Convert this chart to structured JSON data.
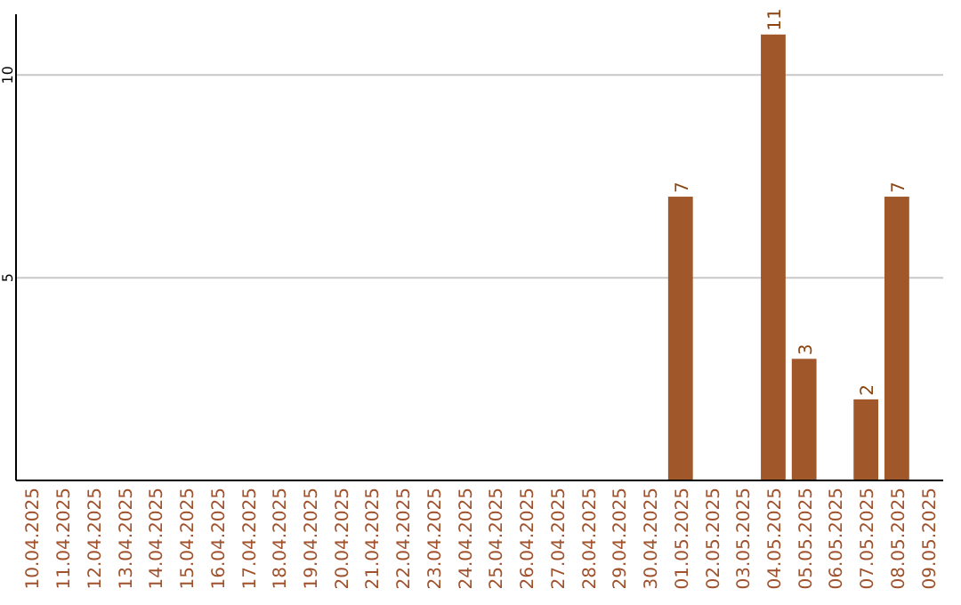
{
  "chart_data": {
    "type": "bar",
    "categories": [
      "10.04.2025",
      "11.04.2025",
      "12.04.2025",
      "13.04.2025",
      "14.04.2025",
      "15.04.2025",
      "16.04.2025",
      "17.04.2025",
      "18.04.2025",
      "19.04.2025",
      "20.04.2025",
      "21.04.2025",
      "22.04.2025",
      "23.04.2025",
      "24.04.2025",
      "25.04.2025",
      "26.04.2025",
      "27.04.2025",
      "28.04.2025",
      "29.04.2025",
      "30.04.2025",
      "01.05.2025",
      "02.05.2025",
      "03.05.2025",
      "04.05.2025",
      "05.05.2025",
      "06.05.2025",
      "07.05.2025",
      "08.05.2025",
      "09.05.2025"
    ],
    "values": [
      0,
      0,
      0,
      0,
      0,
      0,
      0,
      0,
      0,
      0,
      0,
      0,
      0,
      0,
      0,
      0,
      0,
      0,
      0,
      0,
      0,
      7,
      0,
      0,
      11,
      3,
      0,
      2,
      7,
      0
    ],
    "value_labels": [
      null,
      null,
      null,
      null,
      null,
      null,
      null,
      null,
      null,
      null,
      null,
      null,
      null,
      null,
      null,
      null,
      null,
      null,
      null,
      null,
      null,
      "7",
      null,
      null,
      "11",
      "3",
      null,
      "2",
      "7",
      null
    ],
    "color": "#a0582a",
    "ylim": [
      0,
      11.5
    ],
    "yticks": [
      5,
      10
    ],
    "grid": "y"
  }
}
